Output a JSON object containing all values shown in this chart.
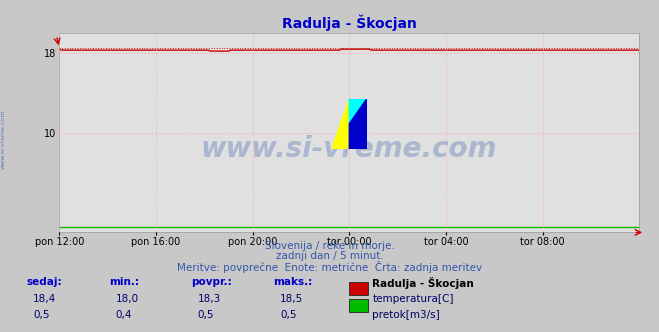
{
  "title": "Radulja - Škocjan",
  "title_color": "#0000cc",
  "title_fontsize": 10,
  "bg_color": "#c8c8c8",
  "plot_bg_color": "#e0e0e0",
  "grid_color": "#ffaaaa",
  "x_tick_labels": [
    "pon 12:00",
    "pon 16:00",
    "pon 20:00",
    "tor 00:00",
    "tor 04:00",
    "tor 08:00"
  ],
  "x_tick_positions": [
    0.0,
    0.1667,
    0.3333,
    0.5,
    0.6667,
    0.8333
  ],
  "ylim": [
    0,
    20
  ],
  "temp_color": "#cc0000",
  "temp_dotted_color": "#cc0000",
  "flow_color": "#00bb00",
  "watermark_text": "www.si-vreme.com",
  "watermark_color": "#3355aa",
  "watermark_alpha": 0.3,
  "side_text": "www.si-vreme.com",
  "side_text_color": "#3355aa",
  "footer_line1": "Slovenija / reke in morje.",
  "footer_line2": "zadnji dan / 5 minut.",
  "footer_line3": "Meritve: povprečne  Enote: metrične  Črta: zadnja meritev",
  "footer_color": "#3355aa",
  "footer_fontsize": 7.5,
  "table_headers": [
    "sedaj:",
    "min.:",
    "povpr.:",
    "maks.:"
  ],
  "table_header_color": "#0000cc",
  "table_row1_vals": [
    "18,4",
    "18,0",
    "18,3",
    "18,5"
  ],
  "table_row2_vals": [
    "0,5",
    "0,4",
    "0,5",
    "0,5"
  ],
  "table_val_color": "#000066",
  "legend_title": "Radulja - Škocjan",
  "legend_title_color": "#000000",
  "legend_items": [
    "temperatura[C]",
    "pretok[m3/s]"
  ],
  "legend_colors": [
    "#cc0000",
    "#00bb00"
  ]
}
